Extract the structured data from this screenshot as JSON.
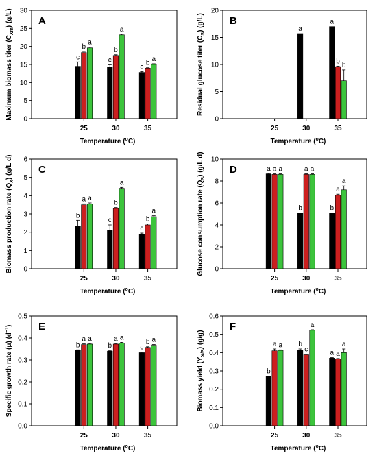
{
  "chart_data": [
    {
      "panel": "A",
      "type": "bar",
      "ylabel": "Maximum biomass titer (C",
      "ylabel_sub": "Xm",
      "ylabel_tail": ") (g/L)",
      "xlabel": "Temperature (",
      "xlabel_sup": "o",
      "xlabel_tail": "C)",
      "categories": [
        "25",
        "30",
        "35"
      ],
      "ylim": [
        0,
        30
      ],
      "yticks": [
        "0",
        "5",
        "10",
        "15",
        "20",
        "25",
        "30"
      ],
      "series": [
        {
          "color": "#000000",
          "values": [
            14.5,
            14.3,
            12.8
          ],
          "errors": [
            1.2,
            0.6,
            0.2
          ],
          "letters": [
            "c",
            "c",
            "c"
          ]
        },
        {
          "color": "#cc1f1f",
          "values": [
            18.3,
            17.5,
            14.0
          ],
          "errors": [
            0.3,
            0.2,
            0.1
          ],
          "letters": [
            "b",
            "b",
            "b"
          ]
        },
        {
          "color": "#3cc43c",
          "values": [
            19.6,
            23.2,
            15.0
          ],
          "errors": [
            0.2,
            0.2,
            0.2
          ],
          "letters": [
            "a",
            "a",
            "a"
          ]
        }
      ]
    },
    {
      "panel": "B",
      "type": "bar",
      "ylabel": "Residual glucose titer (C",
      "ylabel_sub": "S",
      "ylabel_tail": ") (g/L)",
      "xlabel": "Temperature (",
      "xlabel_sup": "o",
      "xlabel_tail": "C)",
      "categories": [
        "25",
        "30",
        "35"
      ],
      "ylim": [
        0,
        20
      ],
      "yticks": [
        "0",
        "5",
        "10",
        "15",
        "20"
      ],
      "series": [
        {
          "color": "#000000",
          "values": [
            0,
            15.7,
            17.0
          ],
          "errors": [
            0,
            0,
            0
          ],
          "letters": [
            "",
            "a",
            "a"
          ]
        },
        {
          "color": "#cc1f1f",
          "values": [
            0,
            0,
            9.6
          ],
          "errors": [
            0,
            0,
            0.1
          ],
          "letters": [
            "",
            "",
            "b"
          ]
        },
        {
          "color": "#3cc43c",
          "values": [
            0,
            0,
            7.0
          ],
          "errors": [
            0,
            0,
            2.0
          ],
          "letters": [
            "",
            "",
            "b"
          ]
        }
      ]
    },
    {
      "panel": "C",
      "type": "bar",
      "ylabel": "Biomass production rate (Q",
      "ylabel_sub": "X",
      "ylabel_tail": ") (g/L d)",
      "xlabel": "Temperature (",
      "xlabel_sup": "o",
      "xlabel_tail": "C)",
      "categories": [
        "25",
        "30",
        "35"
      ],
      "ylim": [
        0,
        6
      ],
      "yticks": [
        "0",
        "1",
        "2",
        "3",
        "4",
        "5",
        "6"
      ],
      "series": [
        {
          "color": "#000000",
          "values": [
            2.35,
            2.1,
            1.9
          ],
          "errors": [
            0.3,
            0.3,
            0.05
          ],
          "letters": [
            "b",
            "c",
            "c"
          ]
        },
        {
          "color": "#cc1f1f",
          "values": [
            3.5,
            3.3,
            2.4
          ],
          "errors": [
            0.05,
            0.05,
            0.05
          ],
          "letters": [
            "a",
            "b",
            "b"
          ]
        },
        {
          "color": "#3cc43c",
          "values": [
            3.55,
            4.4,
            2.85
          ],
          "errors": [
            0.05,
            0.05,
            0.05
          ],
          "letters": [
            "a",
            "a",
            "a"
          ]
        }
      ]
    },
    {
      "panel": "D",
      "type": "bar",
      "ylabel": "Glucose consumption rate (Q",
      "ylabel_sub": "S",
      "ylabel_tail": ") (g/L d)",
      "xlabel": "Temperature (",
      "xlabel_sup": "o",
      "xlabel_tail": "C)",
      "categories": [
        "25",
        "30",
        "35"
      ],
      "ylim": [
        0,
        10
      ],
      "yticks": [
        "0",
        "2",
        "4",
        "6",
        "8",
        "10"
      ],
      "series": [
        {
          "color": "#000000",
          "values": [
            8.65,
            5.05,
            5.05
          ],
          "errors": [
            0.05,
            0.05,
            0.05
          ],
          "letters": [
            "a",
            "b",
            "b"
          ]
        },
        {
          "color": "#cc1f1f",
          "values": [
            8.6,
            8.6,
            6.7
          ],
          "errors": [
            0.05,
            0.05,
            0.1
          ],
          "letters": [
            "a",
            "a",
            "a"
          ]
        },
        {
          "color": "#3cc43c",
          "values": [
            8.6,
            8.6,
            7.2
          ],
          "errors": [
            0.05,
            0.05,
            0.35
          ],
          "letters": [
            "a",
            "a",
            "a"
          ]
        }
      ]
    },
    {
      "panel": "E",
      "type": "bar",
      "ylabel": "Specific growth rate (μ) (d",
      "ylabel_sub": "",
      "ylabel_tail": ")",
      "ylabel_sup": "−1",
      "xlabel": "Temperature (",
      "xlabel_sup": "o",
      "xlabel_tail": "C)",
      "categories": [
        "25",
        "30",
        "35"
      ],
      "ylim": [
        0,
        0.5
      ],
      "yticks": [
        "0.0",
        "0.1",
        "0.2",
        "0.3",
        "0.4",
        "0.5"
      ],
      "series": [
        {
          "color": "#000000",
          "values": [
            0.343,
            0.34,
            0.333
          ],
          "errors": [
            0.003,
            0.003,
            0.003
          ],
          "letters": [
            "b",
            "b",
            "c"
          ]
        },
        {
          "color": "#cc1f1f",
          "values": [
            0.37,
            0.372,
            0.357
          ],
          "errors": [
            0.003,
            0.003,
            0.003
          ],
          "letters": [
            "a",
            "a",
            "b"
          ]
        },
        {
          "color": "#3cc43c",
          "values": [
            0.372,
            0.377,
            0.367
          ],
          "errors": [
            0.003,
            0.003,
            0.003
          ],
          "letters": [
            "a",
            "a",
            "a"
          ]
        }
      ]
    },
    {
      "panel": "F",
      "type": "bar",
      "ylabel": "Biomass yield (Y",
      "ylabel_sub": "X/S",
      "ylabel_tail": ") (g/g)",
      "xlabel": "Temperature (",
      "xlabel_sup": "o",
      "xlabel_tail": "C)",
      "categories": [
        "25",
        "30",
        "35"
      ],
      "ylim": [
        0,
        0.6
      ],
      "yticks": [
        "0.0",
        "0.1",
        "0.2",
        "0.3",
        "0.4",
        "0.5",
        "0.6"
      ],
      "series": [
        {
          "color": "#000000",
          "values": [
            0.272,
            0.415,
            0.37
          ],
          "errors": [
            0.0,
            0.005,
            0.003
          ],
          "letters": [
            "b",
            "b",
            "a"
          ]
        },
        {
          "color": "#cc1f1f",
          "values": [
            0.41,
            0.388,
            0.365
          ],
          "errors": [
            0.01,
            0.003,
            0.003
          ],
          "letters": [
            "a",
            "c",
            "a"
          ]
        },
        {
          "color": "#3cc43c",
          "values": [
            0.412,
            0.522,
            0.4
          ],
          "errors": [
            0.003,
            0.003,
            0.02
          ],
          "letters": [
            "a",
            "a",
            "a"
          ]
        }
      ]
    }
  ]
}
